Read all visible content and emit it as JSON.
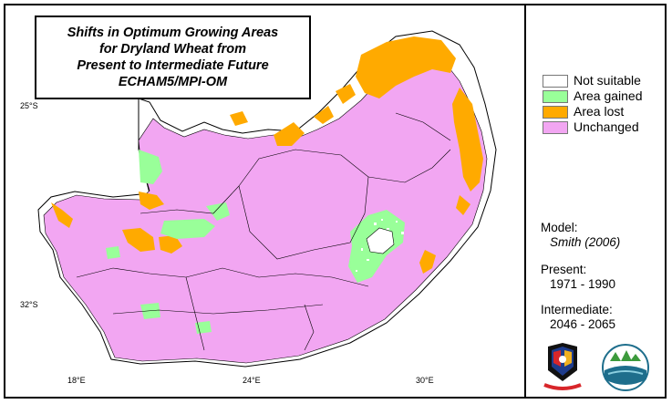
{
  "title": {
    "line1": "Shifts in Optimum Growing Areas",
    "line2": "for Dryland Wheat from",
    "line3": "Present to Intermediate Future",
    "line4": "ECHAM5/MPI-OM"
  },
  "coordinates": {
    "lat_top": "25°S",
    "lat_bottom": "32°S",
    "lon_left": "18°E",
    "lon_mid": "24°E",
    "lon_right": "30°E"
  },
  "legend": [
    {
      "label": "Not suitable",
      "color": "#ffffff"
    },
    {
      "label": "Area gained",
      "color": "#99ff99"
    },
    {
      "label": "Area lost",
      "color": "#ffaa00"
    },
    {
      "label": "Unchanged",
      "color": "#f2a6f2"
    }
  ],
  "info": {
    "model_label": "Model:",
    "model_value": "Smith (2006)",
    "present_label": "Present:",
    "present_value": "1971 - 1990",
    "intermediate_label": "Intermediate:",
    "intermediate_value": "2046 - 2065"
  },
  "logos": [
    "institution-logo",
    "environment-logo"
  ]
}
